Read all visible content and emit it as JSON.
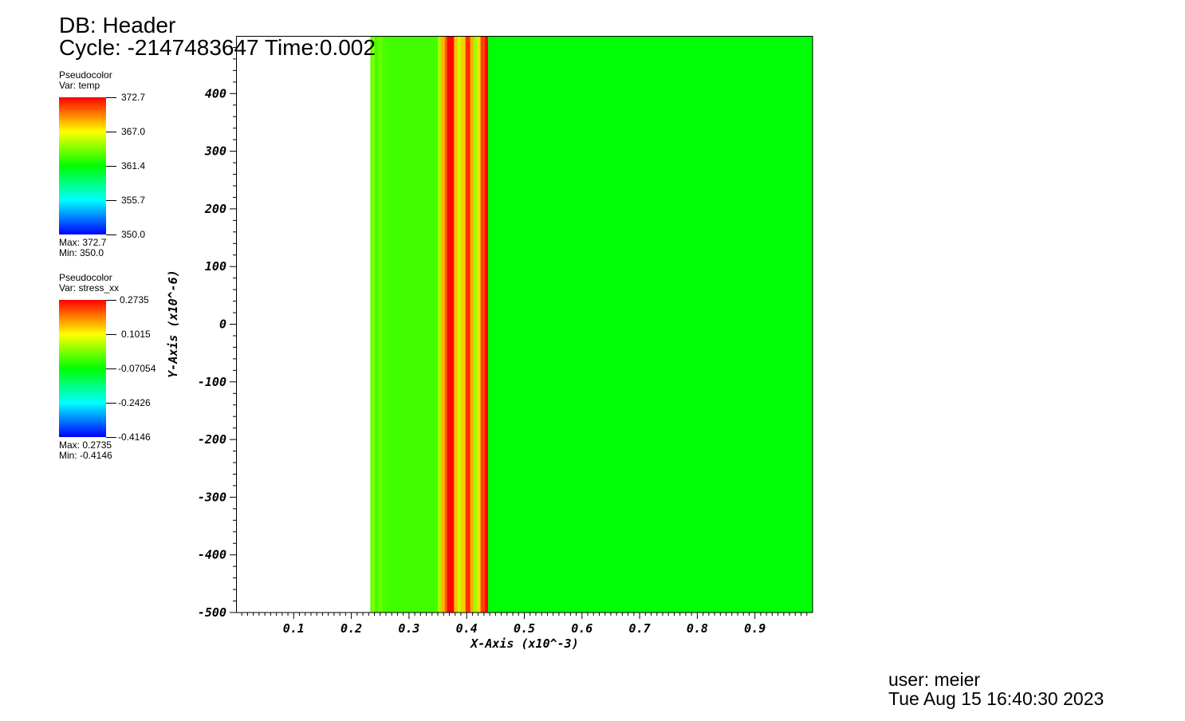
{
  "header": {
    "db_label": "DB: Header",
    "cycle_label": "Cycle: -2147483647 Time:0.002"
  },
  "legends": [
    {
      "plot_type": "Pseudocolor",
      "var_label": "Var: temp",
      "ticks": [
        "372.7",
        "367.0",
        "361.4",
        "355.7",
        "350.0"
      ],
      "max_label": "Max:  372.7",
      "min_label": "Min:  350.0"
    },
    {
      "plot_type": "Pseudocolor",
      "var_label": "Var: stress_xx",
      "ticks": [
        "0.2735",
        "0.1015",
        "-0.07054",
        "-0.2426",
        "-0.4146"
      ],
      "max_label": "Max:  0.2735",
      "min_label": "Min: -0.4146"
    }
  ],
  "colormap": [
    "#0000ff",
    "#00ffff",
    "#00ff00",
    "#ffff00",
    "#ff0000"
  ],
  "footer": {
    "user": "user: meier",
    "date": "Tue Aug 15 16:40:30 2023"
  },
  "chart_data": {
    "type": "heatmap",
    "title": "",
    "xlabel": "X-Axis (x10^-3)",
    "ylabel": "Y-Axis (x10^-6)",
    "xlim": [
      0,
      1.0
    ],
    "ylim": [
      -500,
      500
    ],
    "x_ticks": [
      0.1,
      0.2,
      0.3,
      0.4,
      0.5,
      0.6,
      0.7,
      0.8,
      0.9
    ],
    "x_tick_labels": [
      "0.1",
      "0.2",
      "0.3",
      "0.4",
      "0.5",
      "0.6",
      "0.7",
      "0.8",
      "0.9"
    ],
    "y_ticks": [
      -500,
      -400,
      -300,
      -200,
      -100,
      0,
      100,
      200,
      300,
      400
    ],
    "y_tick_labels": [
      "-500",
      "-400",
      "-300",
      "-200",
      "-100",
      "0",
      "100",
      "200",
      "300",
      "400"
    ],
    "grid": false,
    "variable": "temp",
    "value_range": [
      350.0,
      372.7
    ],
    "field_description": "values vary along x only; no data for x < 0.233",
    "bands": [
      {
        "x0": 0.233,
        "x1": 0.236,
        "value": 363.2
      },
      {
        "x0": 0.236,
        "x1": 0.24,
        "value": 364.6
      },
      {
        "x0": 0.24,
        "x1": 0.246,
        "value": 362.8
      },
      {
        "x0": 0.246,
        "x1": 0.254,
        "value": 363.6
      },
      {
        "x0": 0.254,
        "x1": 0.262,
        "value": 363.0
      },
      {
        "x0": 0.262,
        "x1": 0.35,
        "value": 362.8
      },
      {
        "x0": 0.35,
        "x1": 0.355,
        "value": 365.0
      },
      {
        "x0": 0.355,
        "x1": 0.362,
        "value": 368.6
      },
      {
        "x0": 0.362,
        "x1": 0.366,
        "value": 370.6
      },
      {
        "x0": 0.366,
        "x1": 0.378,
        "value": 372.6
      },
      {
        "x0": 0.378,
        "x1": 0.384,
        "value": 368.4
      },
      {
        "x0": 0.384,
        "x1": 0.39,
        "value": 365.8
      },
      {
        "x0": 0.39,
        "x1": 0.398,
        "value": 368.2
      },
      {
        "x0": 0.398,
        "x1": 0.406,
        "value": 371.6
      },
      {
        "x0": 0.406,
        "x1": 0.412,
        "value": 368.8
      },
      {
        "x0": 0.412,
        "x1": 0.418,
        "value": 364.8
      },
      {
        "x0": 0.418,
        "x1": 0.424,
        "value": 367.8
      },
      {
        "x0": 0.424,
        "x1": 0.432,
        "value": 371.2
      },
      {
        "x0": 0.432,
        "x1": 0.437,
        "value": 372.7
      },
      {
        "x0": 0.437,
        "x1": 1.0,
        "value": 361.2
      }
    ]
  }
}
